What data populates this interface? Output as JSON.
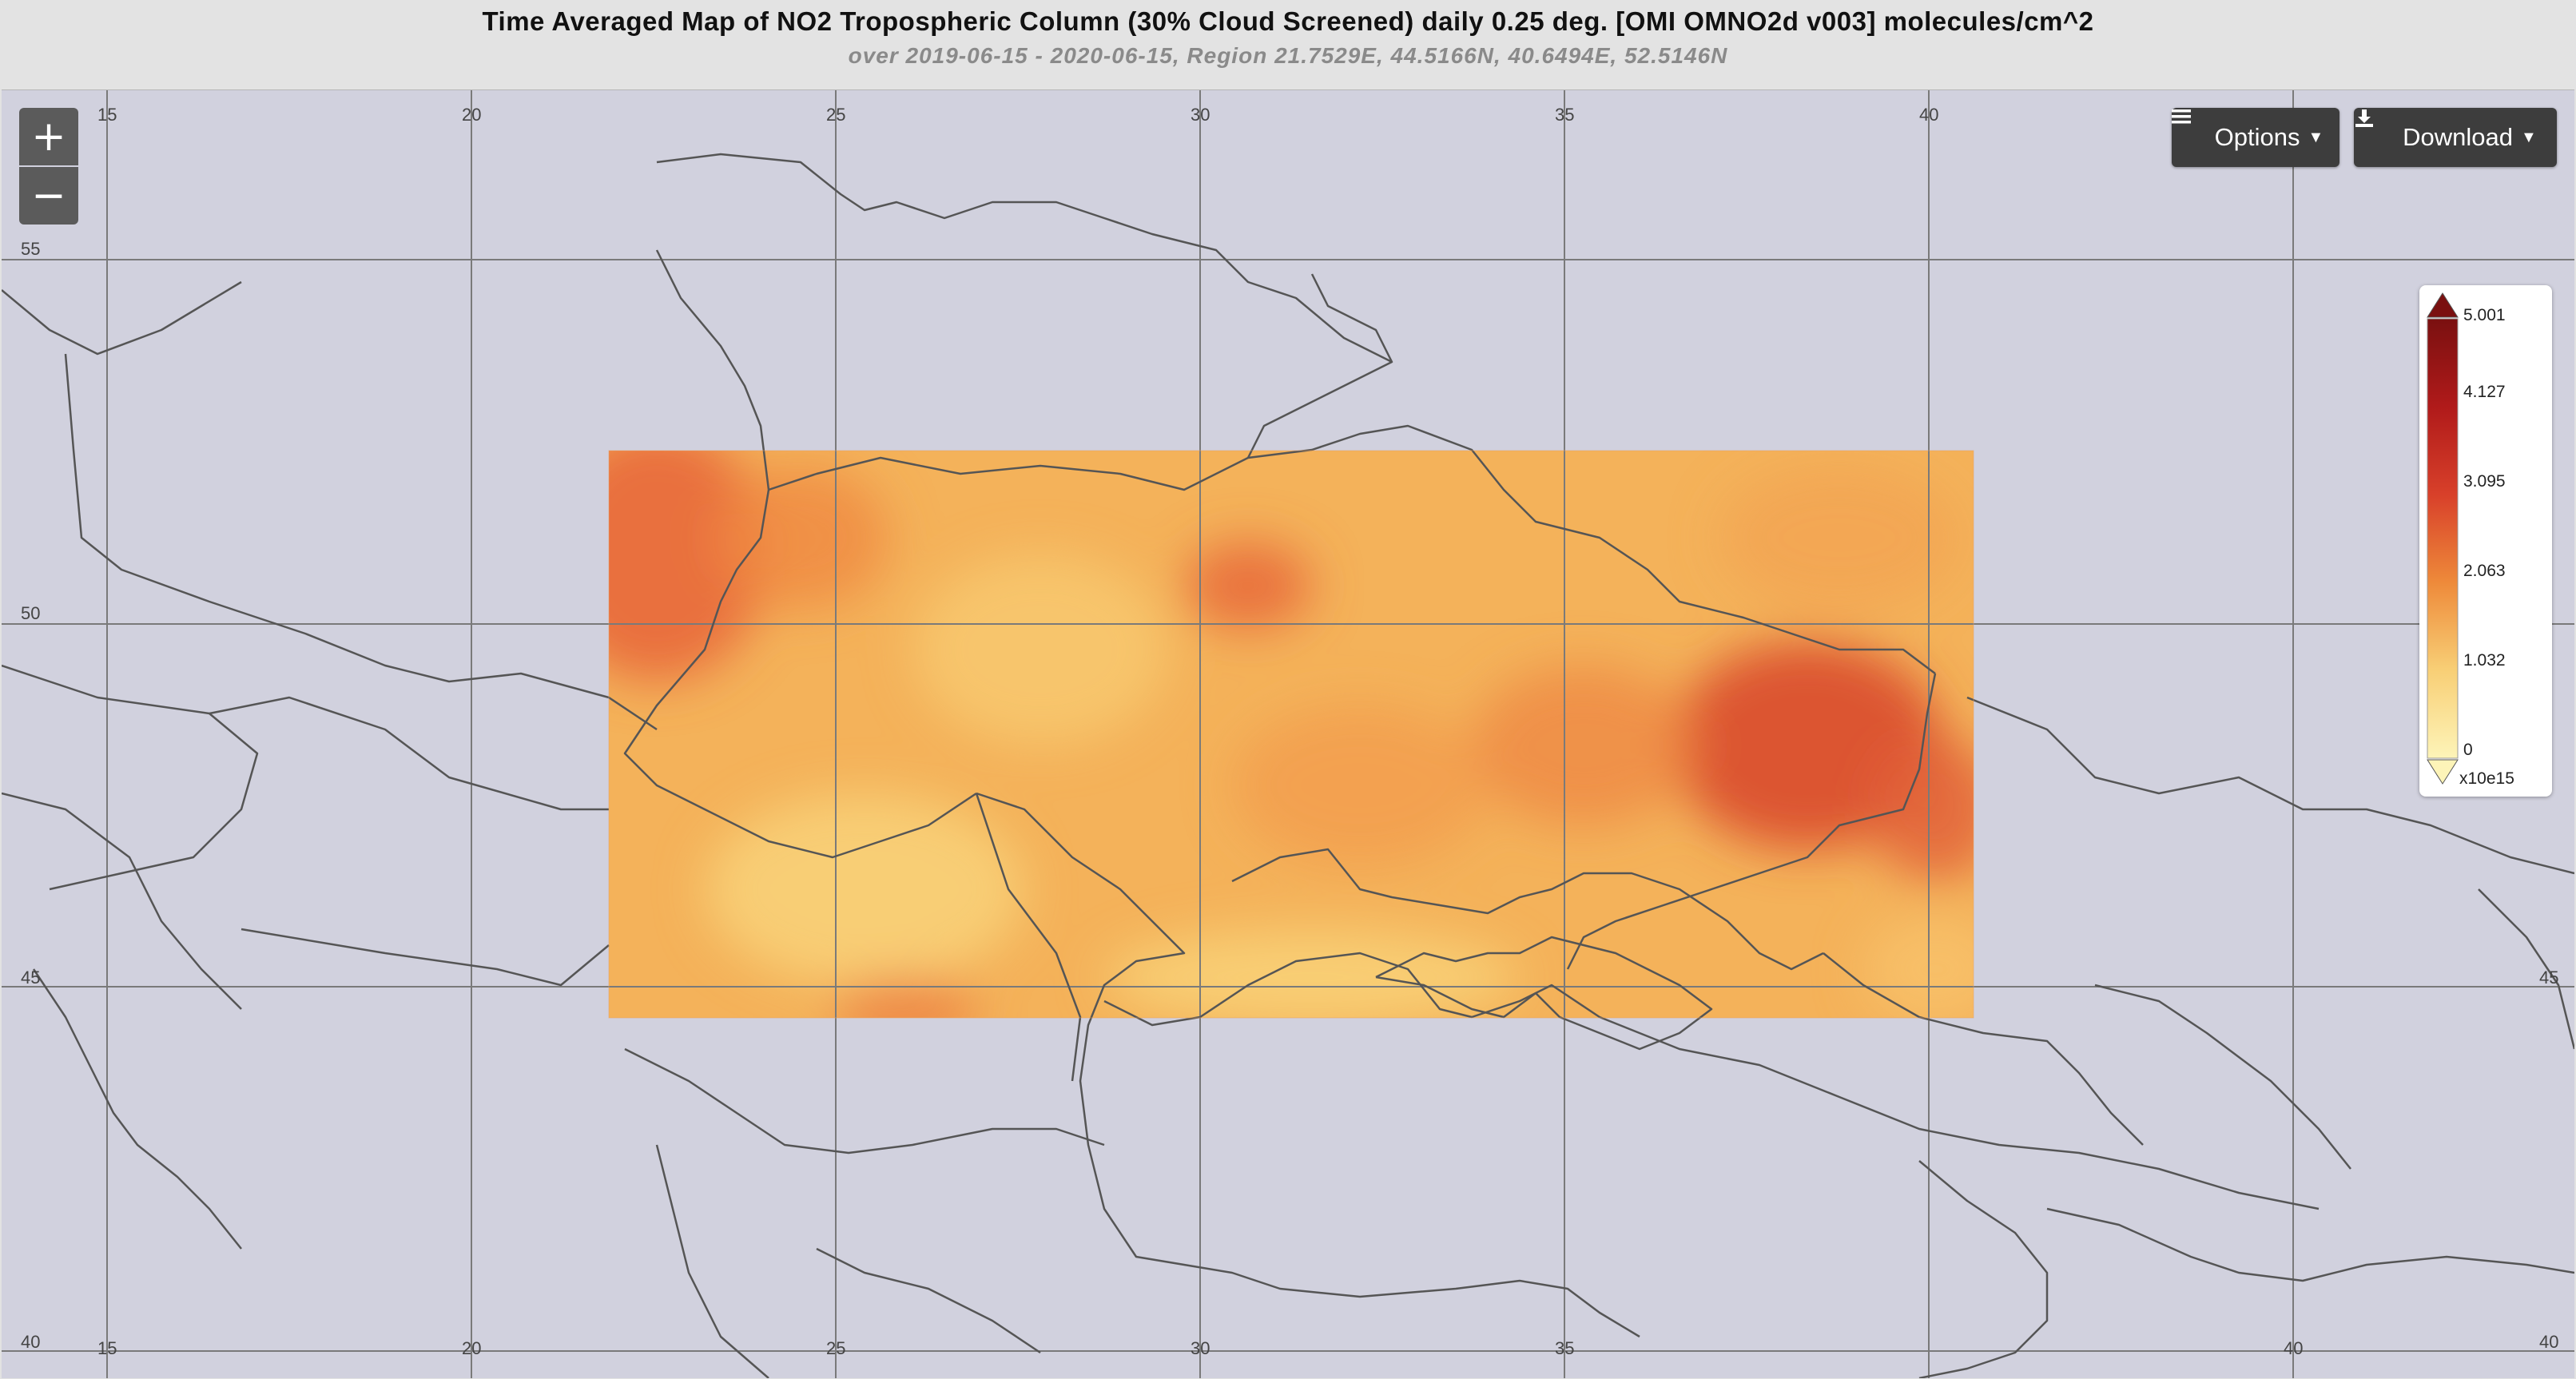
{
  "header": {
    "title": "Time Averaged Map of NO2 Tropospheric Column (30% Cloud Screened) daily 0.25 deg. [OMI OMNO2d v003] molecules/cm^2",
    "subtitle": "over 2019-06-15 - 2020-06-15, Region 21.7529E, 44.5166N, 40.6494E, 52.5146N"
  },
  "controls": {
    "zoom_in": "+",
    "zoom_out": "−",
    "options_label": "Options",
    "download_label": "Download",
    "options_icon": "menu-icon",
    "download_icon": "download-icon"
  },
  "map": {
    "lon_ticks_top": [
      "15",
      "20",
      "25",
      "30",
      "35",
      "40"
    ],
    "lon_ticks_bottom": [
      "15",
      "20",
      "25",
      "30",
      "35",
      "40"
    ],
    "lat_ticks_left": [
      "55",
      "50",
      "45",
      "40"
    ],
    "lat_ticks_right": [
      "45",
      "40"
    ],
    "grid_color": "#7a7a7a",
    "land_color": "#d1d1de",
    "border_color": "#555555"
  },
  "legend": {
    "labels": [
      "5.001",
      "4.127",
      "3.095",
      "2.063",
      "1.032",
      "0"
    ],
    "unit": "x10e15",
    "colors": [
      "#7a1010",
      "#c62a22",
      "#e55a2a",
      "#f08a3a",
      "#f7c36a",
      "#fdf0a8"
    ]
  }
}
